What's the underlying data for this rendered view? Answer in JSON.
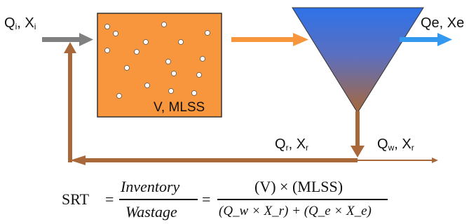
{
  "inflow": {
    "q_main": "Q",
    "q_sub": "i",
    "x_main": "X",
    "x_sub": "i"
  },
  "effluent": {
    "label": "Qe, Xe"
  },
  "recycle": {
    "q_main": "Q",
    "q_sub": "r",
    "x_main": "X",
    "x_sub": "r"
  },
  "wastage_flow": {
    "q_main": "Q",
    "q_sub": "w",
    "x_main": "X",
    "x_sub": "r"
  },
  "tank": {
    "label": "V, MLSS"
  },
  "formula": {
    "lhs": "SRT",
    "eq1": "=",
    "num1": "Inventory",
    "den1": "Wastage",
    "eq2": "=",
    "num2": "(V) × (MLSS)",
    "den2": "(Q_w × X_r) + (Q_e × X_e)"
  },
  "colors": {
    "tank_fill": "#F7963C",
    "tank_border": "#333333",
    "influent_arrow": "#808080",
    "feed_arrow": "#F7963C",
    "effluent_arrow": "#3399EE",
    "sludge_arrow": "#A8683A",
    "clarifier_top": "#2E72E8",
    "clarifier_bottom": "#A8683A"
  }
}
